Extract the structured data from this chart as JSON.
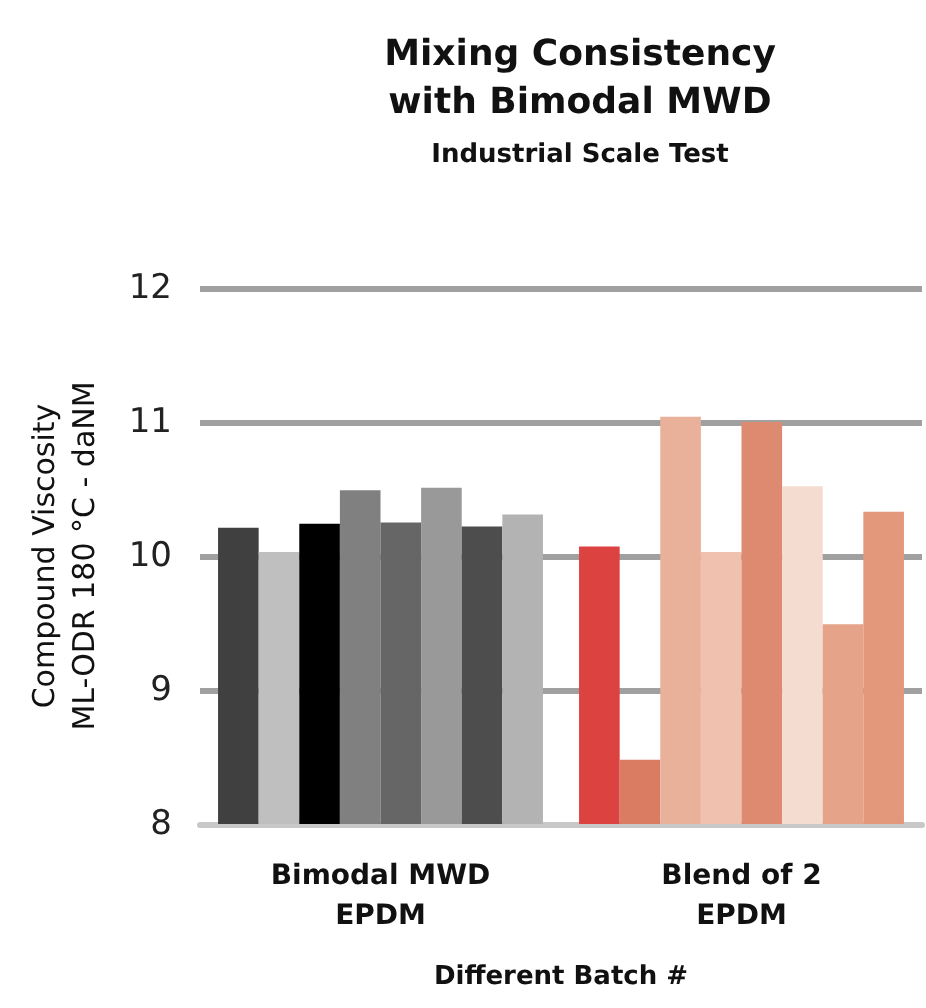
{
  "chart_data": {
    "type": "bar",
    "title": "Mixing Consistency\nwith Bimodal MWD",
    "subtitle": "Industrial Scale Test",
    "xlabel": "Different Batch #",
    "ylabel": "Compound Viscosity\nML-ODR 180 °C - daNM",
    "categories": [
      "Bimodal MWD\nEPDM",
      "Blend of 2\nEPDM"
    ],
    "series": [
      {
        "colors": [
          "#404040",
          "#dc4240"
        ],
        "values": [
          10.21,
          10.07
        ]
      },
      {
        "colors": [
          "#bfbfbf",
          "#d97c62"
        ],
        "values": [
          10.03,
          8.48
        ]
      },
      {
        "colors": [
          "#000000",
          "#e9b09a"
        ],
        "values": [
          10.24,
          11.04
        ]
      },
      {
        "colors": [
          "#808080",
          "#efc1ae"
        ],
        "values": [
          10.49,
          10.03
        ]
      },
      {
        "colors": [
          "#666666",
          "#de8a70"
        ],
        "values": [
          10.25,
          11.0
        ]
      },
      {
        "colors": [
          "#999999",
          "#f5dcd0"
        ],
        "values": [
          10.51,
          10.52
        ]
      },
      {
        "colors": [
          "#4d4d4d",
          "#e5a38a"
        ],
        "values": [
          10.22,
          9.49
        ]
      },
      {
        "colors": [
          "#b3b3b3",
          "#e3977b"
        ],
        "values": [
          10.31,
          10.33
        ]
      }
    ],
    "ylim": [
      8,
      12
    ],
    "yticks": [
      8,
      9,
      10,
      11,
      12
    ],
    "grid": "y"
  }
}
